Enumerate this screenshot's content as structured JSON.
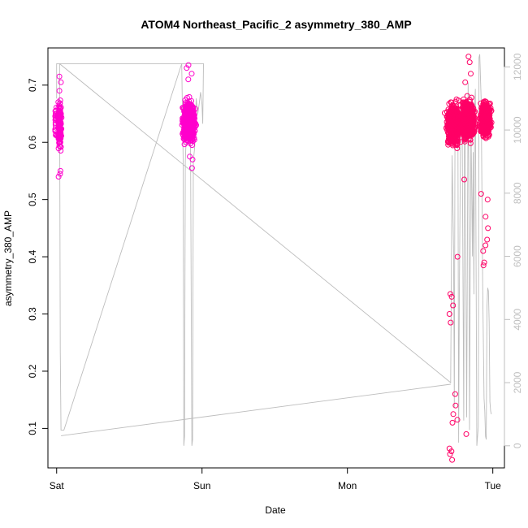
{
  "chart_data": {
    "type": "scatter",
    "title": "ATOM4 Northeast_Pacific_2 asymmetry_380_AMP",
    "xlabel": "Date",
    "ylabel": "asymmetry_380_AMP",
    "x_ticks": [
      "Sat",
      "Sun",
      "Mon",
      "Tue"
    ],
    "x_range_days": [
      -0.06,
      3.08
    ],
    "y_left": {
      "ticks": [
        0.1,
        0.2,
        0.3,
        0.4,
        0.5,
        0.6,
        0.7
      ],
      "range": [
        0.031,
        0.765
      ]
    },
    "y_right": {
      "ticks": [
        0,
        2000,
        4000,
        6000,
        8000,
        10000,
        12000
      ],
      "range": [
        -700,
        12600
      ],
      "color": "#bfbfbf"
    },
    "grid": false,
    "legend": "none",
    "colors": {
      "magenta": "#ff00cc",
      "pink": "#ff0066",
      "crimson": "#e8005a",
      "line": "#bdbdbd"
    },
    "series": [
      {
        "kind": "points",
        "marker": "open-circle",
        "clusters": [
          {
            "x_center": 0.02,
            "x_spread": 0.012,
            "y_center": 0.63,
            "y_spread": 0.035,
            "count": 150,
            "color": "#ff00cc",
            "extra_y": [
              0.715,
              0.705,
              0.69,
              0.545,
              0.54,
              0.55
            ]
          },
          {
            "x_center": -0.005,
            "x_spread": 0.006,
            "y_center": 0.63,
            "y_spread": 0.025,
            "count": 20,
            "color": "#ff00cc"
          },
          {
            "x_center": 0.91,
            "x_spread": 0.035,
            "y_center": 0.635,
            "y_spread": 0.03,
            "count": 900,
            "color": "#ff00cc",
            "extra_y": [
              0.735,
              0.73,
              0.72,
              0.71,
              0.575,
              0.57,
              0.555
            ]
          },
          {
            "x_center": 2.73,
            "x_spread": 0.04,
            "y_center": 0.63,
            "y_spread": 0.03,
            "count": 700,
            "color": "#ff0066",
            "extra_y": [
              0.4,
              0.335,
              0.33,
              0.315,
              0.3,
              0.285,
              0.16,
              0.14,
              0.125,
              0.115,
              0.11,
              0.065,
              0.06,
              0.055,
              0.045
            ]
          },
          {
            "x_center": 2.83,
            "x_spread": 0.04,
            "y_center": 0.64,
            "y_spread": 0.03,
            "count": 700,
            "color": "#ff0066",
            "extra_y": [
              0.75,
              0.74,
              0.72,
              0.705,
              0.535,
              0.09
            ]
          },
          {
            "x_center": 2.95,
            "x_spread": 0.03,
            "y_center": 0.64,
            "y_spread": 0.025,
            "count": 600,
            "color": "#ff0066",
            "extra_y": [
              0.51,
              0.5,
              0.47,
              0.45,
              0.43,
              0.42,
              0.41,
              0.39,
              0.385
            ]
          }
        ]
      },
      {
        "kind": "line",
        "axis": "right",
        "color": "#bdbdbd",
        "x": [
          0.0,
          0.0,
          0.02,
          0.025,
          0.03,
          0.05,
          0.86,
          0.87,
          0.875,
          0.88,
          0.885,
          0.89,
          0.9,
          0.905,
          0.91,
          0.92,
          0.93,
          0.935,
          0.94,
          0.95,
          0.955,
          0.96,
          0.97,
          0.98,
          0.99,
          1.0,
          1.005,
          1.01,
          1.0,
          0.9,
          0.5,
          0.02,
          2.71,
          2.72,
          2.73,
          2.735,
          2.74,
          2.75,
          2.76,
          2.765,
          2.77,
          2.78,
          2.79,
          2.8,
          2.805,
          2.81,
          2.82,
          2.83,
          2.835,
          2.84,
          2.85,
          2.86,
          2.865,
          2.87,
          2.875,
          2.88,
          2.89,
          2.9,
          2.905,
          2.91,
          2.92,
          2.93,
          2.94,
          2.945,
          2.95,
          2.955,
          2.96,
          2.965,
          2.97,
          2.975,
          2.98,
          2.985,
          2.99
        ],
        "y": [
          11000,
          12100,
          12100,
          3000,
          500,
          500,
          12100,
          9000,
          0,
          300,
          9000,
          9600,
          11000,
          10000,
          9800,
          10500,
          0,
          200,
          9000,
          9500,
          10500,
          11000,
          10500,
          10800,
          11200,
          10800,
          10200,
          12100,
          12100,
          12100,
          12100,
          12100,
          2000,
          9200,
          6200,
          1200,
          9800,
          9600,
          10500,
          100,
          4800,
          11000,
          9500,
          800,
          10800,
          9500,
          900,
          11500,
          9000,
          500,
          10300,
          6000,
          9300,
          4800,
          10700,
          11300,
          0,
          600,
          12300,
          12400,
          10900,
          5100,
          1500,
          1100,
          300,
          200,
          4400,
          5000,
          4900,
          3900,
          1400,
          1100,
          1000
        ]
      },
      {
        "kind": "line",
        "axis": "right",
        "color": "#bdbdbd",
        "x": [
          0.03,
          2.71
        ],
        "y": [
          320,
          1950
        ]
      }
    ]
  }
}
